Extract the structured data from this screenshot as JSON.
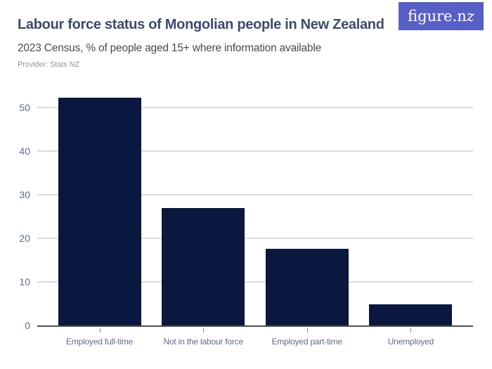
{
  "header": {
    "title": "Labour force status of Mongolian people in New Zealand",
    "subtitle": "2023 Census, % of people aged 15+ where information available",
    "provider": "Provider: Stats NZ",
    "logo": {
      "text_main": "figure.n",
      "text_z": "z"
    }
  },
  "colors": {
    "bar": "#0a1840",
    "logo_background": "#575fc7",
    "title": "#3c4b6d",
    "axis_labels": "#5e6e8e",
    "gridline": "#dcdcdc",
    "axis_line": "#4f4f4f"
  },
  "chart_data": {
    "type": "bar",
    "categories": [
      "Employed full-time",
      "Not in the labour force",
      "Employed part-time",
      "Unemployed"
    ],
    "values": [
      52.3,
      27,
      17.5,
      4.8
    ],
    "title": "Labour force status of Mongolian people in New Zealand",
    "subtitle": "2023 Census, % of people aged 15+ where information available",
    "xlabel": "",
    "ylabel": "",
    "ylim": [
      0,
      54
    ],
    "yticks": [
      0,
      10,
      20,
      30,
      40,
      50
    ],
    "grid": true,
    "legend": "none",
    "bar_color": "#0a1840"
  }
}
